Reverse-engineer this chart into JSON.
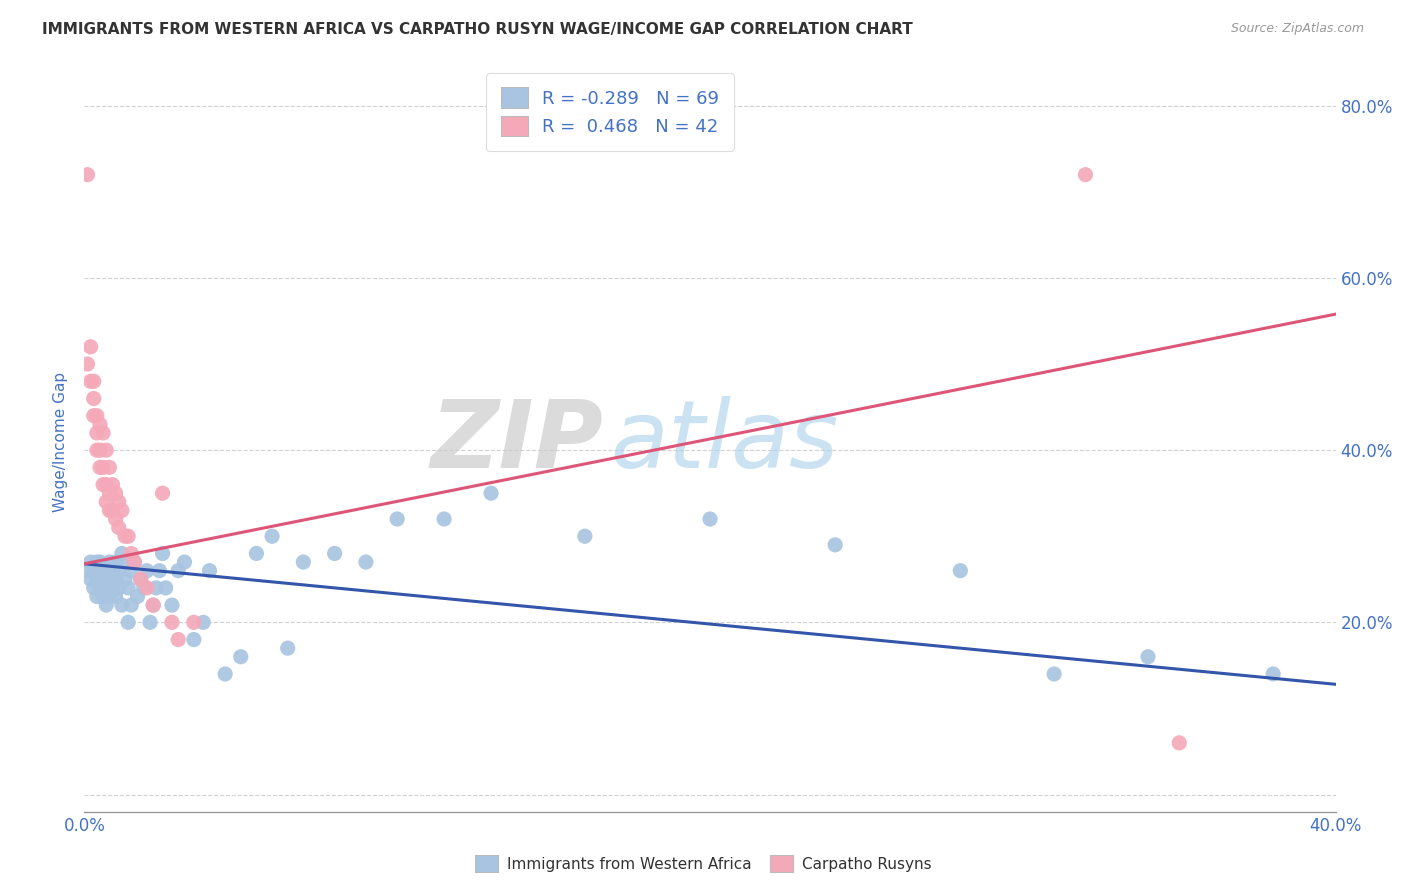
{
  "title": "IMMIGRANTS FROM WESTERN AFRICA VS CARPATHO RUSYN WAGE/INCOME GAP CORRELATION CHART",
  "source": "Source: ZipAtlas.com",
  "ylabel": "Wage/Income Gap",
  "xlim": [
    0.0,
    0.4
  ],
  "ylim": [
    -0.02,
    0.84
  ],
  "xticks": [
    0.0,
    0.05,
    0.1,
    0.15,
    0.2,
    0.25,
    0.3,
    0.35,
    0.4
  ],
  "yticks_right": [
    0.0,
    0.2,
    0.4,
    0.6,
    0.8
  ],
  "yticklabels_right": [
    "",
    "20.0%",
    "40.0%",
    "60.0%",
    "80.0%"
  ],
  "blue_R": -0.289,
  "blue_N": 69,
  "pink_R": 0.468,
  "pink_N": 42,
  "blue_color": "#a8c4e0",
  "pink_color": "#f4a8b8",
  "blue_line_color": "#3355aa",
  "pink_line_color": "#dd5577",
  "watermark_zip": "ZIP",
  "watermark_atlas": "atlas",
  "background_color": "#ffffff",
  "grid_color": "#cccccc",
  "title_color": "#333333",
  "axis_label_color": "#4472c4",
  "blue_scatter_x": [
    0.001,
    0.002,
    0.002,
    0.003,
    0.003,
    0.004,
    0.004,
    0.004,
    0.005,
    0.005,
    0.005,
    0.006,
    0.006,
    0.007,
    0.007,
    0.007,
    0.008,
    0.008,
    0.008,
    0.009,
    0.009,
    0.01,
    0.01,
    0.01,
    0.011,
    0.011,
    0.012,
    0.012,
    0.013,
    0.013,
    0.014,
    0.014,
    0.015,
    0.015,
    0.016,
    0.017,
    0.018,
    0.019,
    0.02,
    0.021,
    0.022,
    0.023,
    0.024,
    0.025,
    0.026,
    0.028,
    0.03,
    0.032,
    0.035,
    0.038,
    0.04,
    0.045,
    0.05,
    0.055,
    0.06,
    0.065,
    0.07,
    0.08,
    0.09,
    0.1,
    0.115,
    0.13,
    0.16,
    0.2,
    0.24,
    0.28,
    0.31,
    0.34,
    0.38
  ],
  "blue_scatter_y": [
    0.26,
    0.25,
    0.27,
    0.24,
    0.26,
    0.27,
    0.25,
    0.23,
    0.26,
    0.24,
    0.27,
    0.25,
    0.23,
    0.26,
    0.24,
    0.22,
    0.27,
    0.25,
    0.23,
    0.26,
    0.24,
    0.27,
    0.25,
    0.23,
    0.26,
    0.24,
    0.28,
    0.22,
    0.27,
    0.25,
    0.24,
    0.2,
    0.26,
    0.22,
    0.27,
    0.23,
    0.25,
    0.24,
    0.26,
    0.2,
    0.22,
    0.24,
    0.26,
    0.28,
    0.24,
    0.22,
    0.26,
    0.27,
    0.18,
    0.2,
    0.26,
    0.14,
    0.16,
    0.28,
    0.3,
    0.17,
    0.27,
    0.28,
    0.27,
    0.32,
    0.32,
    0.35,
    0.3,
    0.32,
    0.29,
    0.26,
    0.14,
    0.16,
    0.14
  ],
  "pink_scatter_x": [
    0.001,
    0.001,
    0.002,
    0.002,
    0.003,
    0.003,
    0.003,
    0.004,
    0.004,
    0.004,
    0.005,
    0.005,
    0.005,
    0.006,
    0.006,
    0.006,
    0.007,
    0.007,
    0.007,
    0.008,
    0.008,
    0.008,
    0.009,
    0.009,
    0.01,
    0.01,
    0.011,
    0.011,
    0.012,
    0.013,
    0.014,
    0.015,
    0.016,
    0.018,
    0.02,
    0.022,
    0.025,
    0.028,
    0.03,
    0.035,
    0.32,
    0.35
  ],
  "pink_scatter_y": [
    0.72,
    0.5,
    0.52,
    0.48,
    0.46,
    0.48,
    0.44,
    0.44,
    0.42,
    0.4,
    0.43,
    0.4,
    0.38,
    0.42,
    0.38,
    0.36,
    0.4,
    0.36,
    0.34,
    0.38,
    0.35,
    0.33,
    0.36,
    0.33,
    0.35,
    0.32,
    0.34,
    0.31,
    0.33,
    0.3,
    0.3,
    0.28,
    0.27,
    0.25,
    0.24,
    0.22,
    0.35,
    0.2,
    0.18,
    0.2,
    0.72,
    0.06
  ],
  "blue_trendline_x": [
    0.0,
    0.4
  ],
  "blue_trendline_y": [
    0.268,
    0.128
  ],
  "pink_trendline_x": [
    0.0,
    0.4
  ],
  "pink_trendline_y": [
    0.268,
    0.558
  ]
}
